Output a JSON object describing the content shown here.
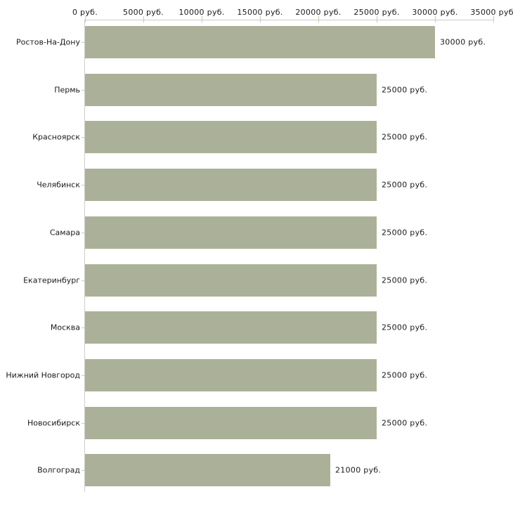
{
  "chart": {
    "bar_color": "#abb198",
    "tick_color": "#c9cdab",
    "axis_line_color": "#cccccc",
    "text_color": "#1a1a1a",
    "background_color": "#ffffff"
  },
  "chart_data": {
    "type": "bar",
    "orientation": "horizontal",
    "title": "",
    "xlabel": "",
    "ylabel": "",
    "xlim": [
      0,
      35000
    ],
    "x_tick_step": 5000,
    "x_tick_labels": [
      "0 руб.",
      "5000 руб.",
      "10000 руб.",
      "15000 руб.",
      "20000 руб.",
      "25000 руб.",
      "30000 руб.",
      "35000 руб."
    ],
    "grid": false,
    "legend": false,
    "categories": [
      "Ростов-На-Дону",
      "Пермь",
      "Красноярск",
      "Челябинск",
      "Самара",
      "Екатеринбург",
      "Москва",
      "Нижний Новгород",
      "Новосибирск",
      "Волгоград"
    ],
    "values": [
      30000,
      25000,
      25000,
      25000,
      25000,
      25000,
      25000,
      25000,
      25000,
      21000
    ],
    "value_labels": [
      "30000 руб.",
      "25000 руб.",
      "25000 руб.",
      "25000 руб.",
      "25000 руб.",
      "25000 руб.",
      "25000 руб.",
      "25000 руб.",
      "25000 руб.",
      "21000 руб."
    ],
    "value_suffix": " руб."
  }
}
